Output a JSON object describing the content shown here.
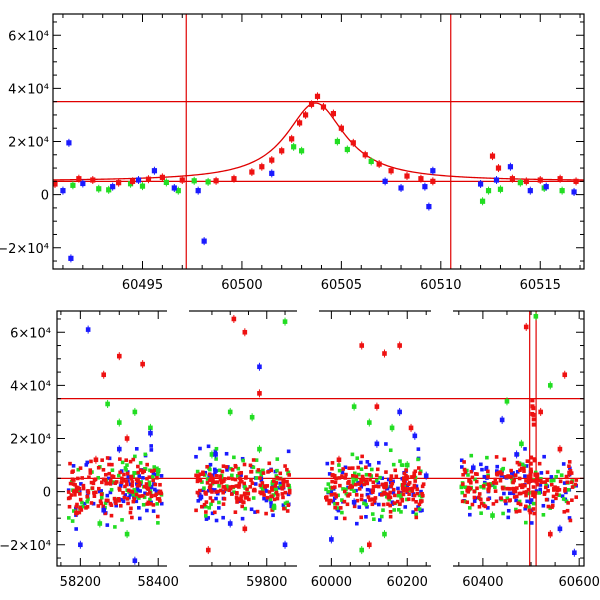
{
  "colors": {
    "green": "#22dd22",
    "blue": "#1a1aff",
    "red": "#ee1111",
    "line": "#e00000"
  },
  "chart_data": [
    {
      "type": "scatter",
      "title": "",
      "xlabel": "",
      "ylabel": "",
      "xlim": [
        60490.5,
        60517.2
      ],
      "ylim": [
        -28000,
        68000
      ],
      "xticks": [
        60495,
        60500,
        60505,
        60510,
        60515
      ],
      "xtick_labels": [
        "60495",
        "60500",
        "60505",
        "60510",
        "60515"
      ],
      "yticks": [
        -20000,
        0,
        20000,
        40000,
        60000
      ],
      "ytick_labels": [
        "−2×10⁴",
        "0",
        "2×10⁴",
        "4×10⁴",
        "6×10⁴"
      ],
      "hlines": [
        35000,
        5000
      ],
      "vlines": [
        60497.2,
        60510.5
      ],
      "fit_curve": {
        "baseline": 5000,
        "peak_time": 60503.7,
        "peak_value": 34500,
        "segments": [
          [
            60490.5,
            60497.2
          ],
          [
            60497.2,
            60510.5
          ],
          [
            60510.5,
            60517.2
          ]
        ]
      },
      "series": [
        {
          "color": "green",
          "points": [
            [
              60491.5,
              3500
            ],
            [
              60492.8,
              2200
            ],
            [
              60493.3,
              1800
            ],
            [
              60494.4,
              4100
            ],
            [
              60495.0,
              3200
            ],
            [
              60496.2,
              4600
            ],
            [
              60496.8,
              1500
            ],
            [
              60497.6,
              5200
            ],
            [
              60498.3,
              4800
            ],
            [
              60502.6,
              18000
            ],
            [
              60503.0,
              16500
            ],
            [
              60504.8,
              20000
            ],
            [
              60505.3,
              17000
            ],
            [
              60506.5,
              12500
            ],
            [
              60512.1,
              -2500
            ],
            [
              60512.4,
              1500
            ],
            [
              60513.0,
              2000
            ],
            [
              60514.0,
              4500
            ],
            [
              60515.2,
              2500
            ],
            [
              60516.1,
              1500
            ]
          ]
        },
        {
          "color": "blue",
          "points": [
            [
              60491.0,
              1500
            ],
            [
              60491.3,
              19500
            ],
            [
              60491.4,
              -24000
            ],
            [
              60492.0,
              4200
            ],
            [
              60493.5,
              3000
            ],
            [
              60494.8,
              5500
            ],
            [
              60495.6,
              9000
            ],
            [
              60496.6,
              2500
            ],
            [
              60497.8,
              1500
            ],
            [
              60498.1,
              -17500
            ],
            [
              60501.5,
              8000
            ],
            [
              60507.2,
              5000
            ],
            [
              60508.0,
              2500
            ],
            [
              60509.2,
              3000
            ],
            [
              60509.4,
              -4500
            ],
            [
              60509.6,
              9000
            ],
            [
              60512.0,
              4000
            ],
            [
              60512.8,
              5500
            ],
            [
              60513.5,
              10500
            ],
            [
              60514.5,
              1500
            ],
            [
              60515.3,
              3000
            ],
            [
              60516.7,
              1000
            ]
          ]
        },
        {
          "color": "red",
          "points": [
            [
              60490.6,
              4000
            ],
            [
              60491.8,
              6000
            ],
            [
              60492.5,
              5500
            ],
            [
              60493.8,
              4500
            ],
            [
              60494.5,
              5000
            ],
            [
              60495.3,
              5800
            ],
            [
              60496.0,
              6500
            ],
            [
              60497.0,
              5500
            ],
            [
              60498.7,
              5200
            ],
            [
              60499.6,
              6000
            ],
            [
              60500.5,
              8500
            ],
            [
              60501.0,
              10500
            ],
            [
              60501.5,
              13000
            ],
            [
              60502.0,
              16500
            ],
            [
              60502.5,
              21000
            ],
            [
              60502.9,
              27000
            ],
            [
              60503.2,
              30000
            ],
            [
              60503.5,
              34000
            ],
            [
              60503.8,
              37000
            ],
            [
              60504.1,
              33000
            ],
            [
              60504.6,
              30500
            ],
            [
              60505.0,
              25000
            ],
            [
              60505.6,
              19500
            ],
            [
              60506.2,
              15000
            ],
            [
              60506.9,
              11500
            ],
            [
              60507.5,
              9000
            ],
            [
              60508.3,
              7000
            ],
            [
              60509.0,
              6000
            ],
            [
              60509.6,
              5000
            ],
            [
              60512.6,
              14500
            ],
            [
              60512.9,
              10000
            ],
            [
              60513.6,
              6000
            ],
            [
              60514.3,
              5000
            ],
            [
              60515.0,
              5500
            ],
            [
              60516.0,
              6000
            ],
            [
              60516.8,
              5000
            ]
          ]
        }
      ]
    },
    {
      "type": "scatter",
      "title": "",
      "xlabel": "",
      "ylabel": "",
      "xlim": [
        58140,
        60610
      ],
      "ylim": [
        -28000,
        68000
      ],
      "xticks": [
        58200,
        58400,
        59800,
        60000,
        60200,
        60400,
        60600
      ],
      "xtick_labels": [
        "58200",
        "58400",
        "59800",
        "60000",
        "60200",
        "60400",
        "60600"
      ],
      "yticks": [
        -20000,
        0,
        20000,
        40000,
        60000
      ],
      "ytick_labels": [
        "−2×10⁴",
        "0",
        "2×10⁴",
        "4×10⁴",
        "6×10⁴"
      ],
      "hlines": [
        35000,
        5000
      ],
      "vlines": [
        60497.2,
        60510.5
      ],
      "seasons": [
        [
          58170,
          58410
        ],
        [
          59605,
          59865
        ],
        [
          59985,
          60245
        ],
        [
          60355,
          60595
        ]
      ],
      "series": [
        {
          "color": "green",
          "points": [
            [
              58270,
              33000
            ],
            [
              58300,
              26000
            ],
            [
              58340,
              30000
            ],
            [
              58380,
              24000
            ],
            [
              58250,
              -12000
            ],
            [
              58320,
              -16000
            ],
            [
              59700,
              30000
            ],
            [
              59760,
              28000
            ],
            [
              59850,
              64000
            ],
            [
              59820,
              -6000
            ],
            [
              59650,
              14000
            ],
            [
              60060,
              32000
            ],
            [
              60100,
              26000
            ],
            [
              60140,
              -16000
            ],
            [
              60160,
              24000
            ],
            [
              60200,
              10000
            ],
            [
              60080,
              -22000
            ],
            [
              60450,
              34000
            ],
            [
              60510,
              66000
            ],
            [
              60480,
              18000
            ],
            [
              60540,
              40000
            ],
            [
              60420,
              -9000
            ],
            [
              58400,
              8000
            ],
            [
              59780,
              16000
            ]
          ]
        },
        {
          "color": "blue",
          "points": [
            [
              58220,
              61000
            ],
            [
              58200,
              -20000
            ],
            [
              58260,
              -7000
            ],
            [
              58340,
              -26000
            ],
            [
              58380,
              22000
            ],
            [
              59660,
              14000
            ],
            [
              59700,
              -12000
            ],
            [
              59780,
              47000
            ],
            [
              59850,
              -20000
            ],
            [
              59620,
              -2000
            ],
            [
              60000,
              -18000
            ],
            [
              60120,
              18000
            ],
            [
              60180,
              30000
            ],
            [
              60060,
              -4000
            ],
            [
              60220,
              21000
            ],
            [
              60440,
              27000
            ],
            [
              60470,
              14000
            ],
            [
              60380,
              9000
            ],
            [
              60560,
              -14000
            ],
            [
              60590,
              -23000
            ],
            [
              58300,
              16000
            ],
            [
              60250,
              6000
            ]
          ]
        },
        {
          "color": "red",
          "points": [
            [
              58260,
              44000
            ],
            [
              58300,
              51000
            ],
            [
              58360,
              48000
            ],
            [
              58240,
              12000
            ],
            [
              58320,
              20000
            ],
            [
              58190,
              -8000
            ],
            [
              59710,
              65000
            ],
            [
              59740,
              60000
            ],
            [
              59780,
              37000
            ],
            [
              59640,
              -22000
            ],
            [
              59740,
              -14000
            ],
            [
              60080,
              55000
            ],
            [
              60140,
              52000
            ],
            [
              60180,
              55000
            ],
            [
              60120,
              32000
            ],
            [
              60020,
              12000
            ],
            [
              60210,
              24000
            ],
            [
              60100,
              -20000
            ],
            [
              60490,
              62000
            ],
            [
              60520,
              30000
            ],
            [
              60560,
              16000
            ],
            [
              60570,
              44000
            ],
            [
              60540,
              -16000
            ],
            [
              60580,
              7000
            ]
          ]
        }
      ]
    }
  ]
}
